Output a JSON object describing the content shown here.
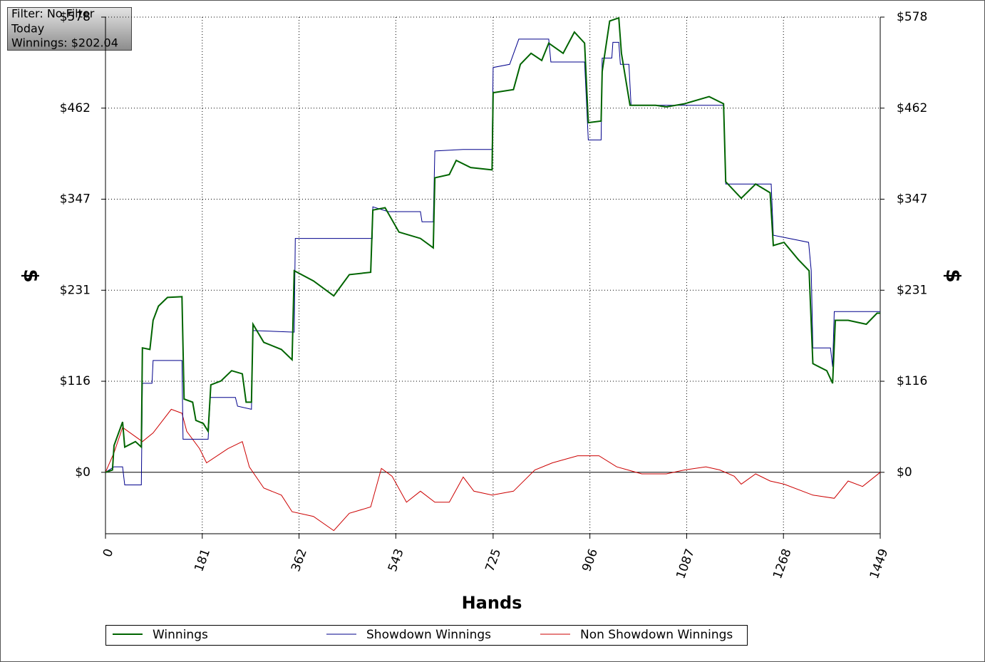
{
  "chart_data": {
    "type": "line",
    "info": [
      "Filter: No Filter",
      "Today",
      "Winnings: $202.04"
    ],
    "x_label": "Hands",
    "y_label": "$",
    "y2_label": "$",
    "xlim": [
      0,
      1449
    ],
    "xticks": [
      0,
      181,
      362,
      543,
      725,
      906,
      1087,
      1268,
      1449
    ],
    "ylim": [
      -78,
      578
    ],
    "yticks": [
      {
        "value": 0,
        "label": "$0"
      },
      {
        "value": 115.6,
        "label": "$116"
      },
      {
        "value": 231.2,
        "label": "$231"
      },
      {
        "value": 346.8,
        "label": "$347"
      },
      {
        "value": 462.4,
        "label": "$462"
      },
      {
        "value": 578,
        "label": "$578"
      }
    ],
    "y2ticks": [
      {
        "value": 0,
        "label": "$0"
      },
      {
        "value": 115.6,
        "label": "$116"
      },
      {
        "value": 231.2,
        "label": "$231"
      },
      {
        "value": 346.8,
        "label": "$347"
      },
      {
        "value": 462.4,
        "label": "$462"
      },
      {
        "value": 578,
        "label": "$578"
      }
    ],
    "grid": true,
    "legend": "bottom",
    "series": [
      {
        "name": "Winnings",
        "color": "#006400",
        "x": [
          0,
          13,
          16,
          32,
          36,
          56,
          67,
          69,
          83,
          89,
          99,
          116,
          143,
          147,
          163,
          169,
          183,
          192,
          197,
          216,
          236,
          256,
          263,
          273,
          276,
          296,
          329,
          349,
          353,
          389,
          427,
          456,
          496,
          500,
          523,
          549,
          589,
          613,
          616,
          643,
          656,
          683,
          723,
          725,
          763,
          776,
          796,
          816,
          829,
          856,
          877,
          896,
          903,
          927,
          929,
          943,
          960,
          965,
          981,
          1029,
          1049,
          1083,
          1129,
          1156,
          1160,
          1189,
          1216,
          1243,
          1249,
          1269,
          1296,
          1316,
          1323,
          1349,
          1360,
          1365,
          1389,
          1423,
          1443,
          1449
        ],
        "values": [
          0,
          3,
          34,
          64,
          32,
          39,
          32,
          158,
          156,
          193,
          211,
          222,
          223,
          93,
          89,
          66,
          62,
          52,
          111,
          116,
          129,
          125,
          89,
          89,
          188,
          165,
          156,
          143,
          256,
          243,
          224,
          251,
          254,
          333,
          336,
          305,
          297,
          285,
          374,
          378,
          396,
          387,
          384,
          482,
          486,
          518,
          532,
          523,
          545,
          532,
          559,
          545,
          444,
          446,
          509,
          573,
          577,
          532,
          466,
          466,
          464,
          468,
          477,
          468,
          369,
          348,
          366,
          355,
          288,
          292,
          270,
          256,
          138,
          129,
          113,
          193,
          193,
          188,
          202,
          202.04
        ]
      },
      {
        "name": "Showdown Winnings",
        "color": "#00008b",
        "x": [
          0,
          16,
          32,
          36,
          67,
          69,
          87,
          89,
          143,
          145,
          192,
          196,
          243,
          247,
          273,
          276,
          353,
          355,
          499,
          500,
          529,
          589,
          592,
          613,
          616,
          669,
          723,
          725,
          756,
          773,
          829,
          833,
          896,
          903,
          927,
          929,
          947,
          949,
          960,
          963,
          979,
          983,
          1156,
          1160,
          1245,
          1249,
          1315,
          1320,
          1323,
          1356,
          1360,
          1363,
          1449
        ],
        "values": [
          0,
          7,
          7,
          -16,
          -16,
          113,
          113,
          142,
          142,
          42,
          42,
          95,
          95,
          84,
          80,
          180,
          178,
          297,
          297,
          337,
          331,
          331,
          318,
          318,
          408,
          410,
          410,
          514,
          518,
          550,
          550,
          521,
          521,
          422,
          422,
          526,
          526,
          546,
          546,
          518,
          518,
          466,
          466,
          366,
          366,
          301,
          292,
          256,
          158,
          158,
          134,
          204,
          204
        ]
      },
      {
        "name": "Non Showdown Winnings",
        "color": "#cc0000",
        "x": [
          0,
          16,
          32,
          69,
          89,
          123,
          143,
          152,
          176,
          189,
          229,
          256,
          269,
          296,
          329,
          349,
          389,
          427,
          456,
          496,
          516,
          536,
          563,
          589,
          616,
          643,
          669,
          689,
          723,
          763,
          803,
          836,
          883,
          923,
          956,
          1003,
          1049,
          1083,
          1123,
          1149,
          1176,
          1189,
          1216,
          1243,
          1269,
          1323,
          1363,
          1389,
          1416,
          1449
        ],
        "values": [
          0,
          25,
          57,
          39,
          50,
          80,
          75,
          52,
          30,
          12,
          30,
          39,
          7,
          -20,
          -29,
          -50,
          -56,
          -74,
          -52,
          -44,
          5,
          -5,
          -38,
          -24,
          -38,
          -38,
          -6,
          -24,
          -29,
          -24,
          3,
          12,
          21,
          21,
          7,
          -2,
          -2,
          3,
          7,
          3,
          -5,
          -15,
          -2,
          -11,
          -15,
          -29,
          -33,
          -11,
          -18,
          0
        ]
      }
    ]
  }
}
